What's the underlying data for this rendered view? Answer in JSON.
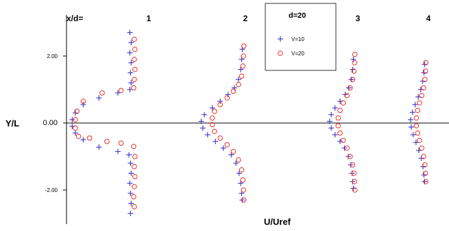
{
  "chart_data": {
    "type": "scatter",
    "title": "",
    "xlabel": "U/Uref",
    "ylabel": "Y/L",
    "ylim": [
      -3.0,
      2.75
    ],
    "yticks": [
      2.0,
      0.0,
      -2.0
    ],
    "ytick_labels": [
      "2.00",
      "0.00",
      "-2.00"
    ],
    "header_label": "x/d=",
    "grid": false,
    "legend": {
      "title": "d=20",
      "placement": "top-center",
      "entries": [
        {
          "label": "V=10",
          "marker": "plus",
          "color": "#3333cc"
        },
        {
          "label": "V=20",
          "marker": "circle",
          "color": "#e8302a"
        }
      ]
    },
    "profiles": [
      {
        "station": "1",
        "series": [
          {
            "name": "V=10",
            "points": [
              [
                -0.62,
                2.7
              ],
              [
                -0.58,
                2.4
              ],
              [
                -0.62,
                2.1
              ],
              [
                -0.58,
                1.8
              ],
              [
                -0.6,
                1.5
              ],
              [
                -0.58,
                1.2
              ],
              [
                -0.62,
                1.0
              ],
              [
                -1.0,
                0.9
              ],
              [
                -1.6,
                0.75
              ],
              [
                -2.1,
                0.55
              ],
              [
                -2.35,
                0.3
              ],
              [
                -2.45,
                0.1
              ],
              [
                -2.45,
                -0.1
              ],
              [
                -2.35,
                -0.3
              ],
              [
                -2.1,
                -0.5
              ],
              [
                -1.6,
                -0.72
              ],
              [
                -1.0,
                -0.85
              ],
              [
                -0.65,
                -0.95
              ],
              [
                -0.6,
                -1.2
              ],
              [
                -0.58,
                -1.5
              ],
              [
                -0.62,
                -1.8
              ],
              [
                -0.6,
                -2.1
              ],
              [
                -0.58,
                -2.4
              ],
              [
                -0.6,
                -2.7
              ]
            ]
          },
          {
            "name": "V=20",
            "points": [
              [
                -0.48,
                2.5
              ],
              [
                -0.46,
                2.2
              ],
              [
                -0.48,
                1.9
              ],
              [
                -0.46,
                1.6
              ],
              [
                -0.48,
                1.3
              ],
              [
                -0.5,
                1.05
              ],
              [
                -0.9,
                0.97
              ],
              [
                -1.5,
                0.9
              ],
              [
                -2.1,
                0.65
              ],
              [
                -2.3,
                0.35
              ],
              [
                -2.35,
                0.1
              ],
              [
                -2.35,
                -0.15
              ],
              [
                -2.25,
                -0.4
              ],
              [
                -1.9,
                -0.45
              ],
              [
                -1.35,
                -0.55
              ],
              [
                -0.9,
                -0.6
              ],
              [
                -0.5,
                -0.7
              ],
              [
                -0.46,
                -1.0
              ],
              [
                -0.48,
                -1.3
              ],
              [
                -0.46,
                -1.6
              ],
              [
                -0.48,
                -1.9
              ],
              [
                -0.5,
                -2.2
              ],
              [
                -0.48,
                -2.5
              ]
            ]
          }
        ]
      },
      {
        "station": "2",
        "series": [
          {
            "name": "V=10",
            "points": [
              [
                -0.1,
                2.2
              ],
              [
                -0.12,
                1.9
              ],
              [
                -0.15,
                1.6
              ],
              [
                -0.22,
                1.3
              ],
              [
                -0.35,
                1.05
              ],
              [
                -0.55,
                0.85
              ],
              [
                -0.8,
                0.65
              ],
              [
                -1.05,
                0.45
              ],
              [
                -1.3,
                0.25
              ],
              [
                -1.4,
                0.05
              ],
              [
                -1.35,
                -0.15
              ],
              [
                -1.2,
                -0.35
              ],
              [
                -0.95,
                -0.55
              ],
              [
                -0.7,
                -0.75
              ],
              [
                -0.45,
                -0.95
              ],
              [
                -0.3,
                -1.2
              ],
              [
                -0.2,
                -1.5
              ],
              [
                -0.15,
                -1.8
              ],
              [
                -0.12,
                -2.1
              ],
              [
                -0.1,
                -2.3
              ]
            ]
          },
          {
            "name": "V=20",
            "points": [
              [
                -0.05,
                2.3
              ],
              [
                -0.06,
                2.0
              ],
              [
                -0.08,
                1.7
              ],
              [
                -0.12,
                1.4
              ],
              [
                -0.22,
                1.15
              ],
              [
                -0.38,
                0.95
              ],
              [
                -0.58,
                0.75
              ],
              [
                -0.8,
                0.55
              ],
              [
                -0.98,
                0.35
              ],
              [
                -1.05,
                0.15
              ],
              [
                -1.05,
                -0.05
              ],
              [
                -0.98,
                -0.25
              ],
              [
                -0.8,
                -0.45
              ],
              [
                -0.58,
                -0.65
              ],
              [
                -0.38,
                -0.85
              ],
              [
                -0.22,
                -1.1
              ],
              [
                -0.12,
                -1.4
              ],
              [
                -0.08,
                -1.7
              ],
              [
                -0.06,
                -2.0
              ],
              [
                -0.05,
                -2.3
              ]
            ]
          }
        ]
      },
      {
        "station": "3",
        "series": [
          {
            "name": "V=10",
            "points": [
              [
                -0.1,
                1.9
              ],
              [
                -0.12,
                1.6
              ],
              [
                -0.16,
                1.3
              ],
              [
                -0.24,
                1.05
              ],
              [
                -0.36,
                0.85
              ],
              [
                -0.52,
                0.65
              ],
              [
                -0.68,
                0.45
              ],
              [
                -0.8,
                0.25
              ],
              [
                -0.85,
                0.05
              ],
              [
                -0.8,
                -0.15
              ],
              [
                -0.68,
                -0.35
              ],
              [
                -0.52,
                -0.55
              ],
              [
                -0.38,
                -0.75
              ],
              [
                -0.26,
                -1.0
              ],
              [
                -0.18,
                -1.25
              ],
              [
                -0.14,
                -1.5
              ],
              [
                -0.12,
                -1.75
              ],
              [
                -0.1,
                -1.95
              ]
            ]
          },
          {
            "name": "V=20",
            "points": [
              [
                -0.05,
                2.05
              ],
              [
                -0.06,
                1.8
              ],
              [
                -0.08,
                1.55
              ],
              [
                -0.12,
                1.3
              ],
              [
                -0.2,
                1.05
              ],
              [
                -0.3,
                0.82
              ],
              [
                -0.42,
                0.6
              ],
              [
                -0.52,
                0.38
              ],
              [
                -0.58,
                0.15
              ],
              [
                -0.58,
                -0.08
              ],
              [
                -0.52,
                -0.3
              ],
              [
                -0.42,
                -0.52
              ],
              [
                -0.3,
                -0.75
              ],
              [
                -0.2,
                -1.0
              ],
              [
                -0.12,
                -1.25
              ],
              [
                -0.08,
                -1.5
              ],
              [
                -0.06,
                -1.75
              ],
              [
                -0.05,
                -2.0
              ]
            ]
          }
        ]
      },
      {
        "station": "4",
        "series": [
          {
            "name": "V=10",
            "points": [
              [
                -0.08,
                1.75
              ],
              [
                -0.1,
                1.5
              ],
              [
                -0.14,
                1.25
              ],
              [
                -0.2,
                1.0
              ],
              [
                -0.28,
                0.78
              ],
              [
                -0.38,
                0.55
              ],
              [
                -0.46,
                0.32
              ],
              [
                -0.52,
                0.1
              ],
              [
                -0.5,
                -0.12
              ],
              [
                -0.44,
                -0.35
              ],
              [
                -0.35,
                -0.58
              ],
              [
                -0.26,
                -0.82
              ],
              [
                -0.18,
                -1.05
              ],
              [
                -0.13,
                -1.3
              ],
              [
                -0.1,
                -1.55
              ],
              [
                -0.08,
                -1.75
              ]
            ]
          },
          {
            "name": "V=20",
            "points": [
              [
                -0.04,
                1.8
              ],
              [
                -0.05,
                1.55
              ],
              [
                -0.07,
                1.3
              ],
              [
                -0.11,
                1.05
              ],
              [
                -0.17,
                0.82
              ],
              [
                -0.24,
                0.6
              ],
              [
                -0.3,
                0.38
              ],
              [
                -0.34,
                0.15
              ],
              [
                -0.34,
                -0.08
              ],
              [
                -0.3,
                -0.3
              ],
              [
                -0.24,
                -0.52
              ],
              [
                -0.17,
                -0.75
              ],
              [
                -0.11,
                -1.0
              ],
              [
                -0.07,
                -1.25
              ],
              [
                -0.05,
                -1.5
              ],
              [
                -0.04,
                -1.75
              ]
            ]
          }
        ]
      }
    ]
  }
}
